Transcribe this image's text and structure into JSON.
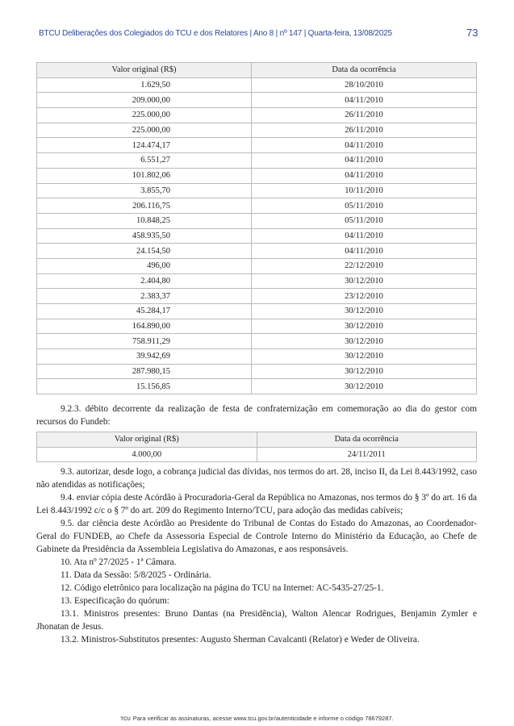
{
  "header": {
    "title": "BTCU Deliberações dos Colegiados do TCU e dos Relatores | Ano 8 | nº 147 | Quarta-feira, 13/08/2025",
    "page_number": "73"
  },
  "table1": {
    "columns": [
      "Valor original (R$)",
      "Data da ocorrência"
    ],
    "rows": [
      [
        "1.629,50",
        "28/10/2010"
      ],
      [
        "209.000,00",
        "04/11/2010"
      ],
      [
        "225.000,00",
        "26/11/2010"
      ],
      [
        "225.000,00",
        "26/11/2010"
      ],
      [
        "124.474,17",
        "04/11/2010"
      ],
      [
        "6.551,27",
        "04/11/2010"
      ],
      [
        "101.802,06",
        "04/11/2010"
      ],
      [
        "3.855,70",
        "10/11/2010"
      ],
      [
        "206.116,75",
        "05/11/2010"
      ],
      [
        "10.848,25",
        "05/11/2010"
      ],
      [
        "458.935,50",
        "04/11/2010"
      ],
      [
        "24.154,50",
        "04/11/2010"
      ],
      [
        "496,00",
        "22/12/2010"
      ],
      [
        "2.404,80",
        "30/12/2010"
      ],
      [
        "2.383,37",
        "23/12/2010"
      ],
      [
        "45.284,17",
        "30/12/2010"
      ],
      [
        "164.890,00",
        "30/12/2010"
      ],
      [
        "758.911,29",
        "30/12/2010"
      ],
      [
        "39.942,69",
        "30/12/2010"
      ],
      [
        "287.980,15",
        "30/12/2010"
      ],
      [
        "15.156,85",
        "30/12/2010"
      ]
    ]
  },
  "para_923": "9.2.3. débito decorrente da realização de festa de confraternização em comemoração ao dia do gestor com recursos do Fundeb:",
  "table2": {
    "columns": [
      "Valor original (R$)",
      "Data da ocorrência"
    ],
    "rows": [
      [
        "4.000,00",
        "24/11/2011"
      ]
    ]
  },
  "paragraphs": [
    "9.3. autorizar, desde logo, a cobrança judicial das dívidas, nos termos do art. 28, inciso II, da Lei 8.443/1992, caso não atendidas as notificações;",
    "9.4. enviar cópia deste Acórdão à Procuradoria-Geral da República no Amazonas, nos termos do § 3º do art. 16 da Lei 8.443/1992 c/c o § 7º do art. 209 do Regimento Interno/TCU, para adoção das medidas cabíveis;",
    "9.5. dar ciência deste Acórdão ao Presidente do Tribunal de Contas do Estado do Amazonas, ao Coordenador-Geral do FUNDEB, ao Chefe da Assessoria Especial de Controle Interno do Ministério da Educação, ao Chefe de Gabinete da Presidência da Assembleia Legislativa do Amazonas, e aos responsáveis.",
    "10. Ata nº 27/2025 - 1ª Câmara.",
    "11. Data da Sessão: 5/8/2025 - Ordinária.",
    "12. Código eletrônico para localização na página do TCU na Internet: AC-5435-27/25-1.",
    "13. Especificação do quórum:",
    "13.1. Ministros presentes: Bruno Dantas (na Presidência), Walton Alencar Rodrigues, Benjamin Zymler e Jhonatan de Jesus.",
    "13.2. Ministros-Substitutos presentes: Augusto Sherman Cavalcanti (Relator) e Weder de Oliveira."
  ],
  "footer": {
    "logo": "TCU",
    "text": "Para verificar as assinaturas, acesse www.tcu.gov.br/autenticidade e informe o código 78679287."
  }
}
